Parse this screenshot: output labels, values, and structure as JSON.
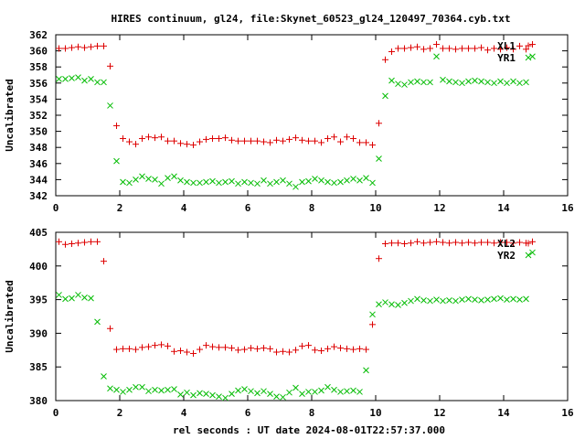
{
  "figure": {
    "title": "HIRES continuum, gl24, file:Skynet_60523_gl24_120497_70364.cyb.txt",
    "xlabel": "rel seconds : UT date 2024-08-01T22:57:37.000"
  },
  "chart_data": [
    {
      "type": "scatter",
      "ylabel": "Uncalibrated",
      "xlim": [
        0,
        16
      ],
      "ylim": [
        342,
        362
      ],
      "xticks": [
        0,
        2,
        4,
        6,
        8,
        10,
        12,
        14,
        16
      ],
      "yticks": [
        342,
        344,
        346,
        348,
        350,
        352,
        354,
        356,
        358,
        360,
        362
      ],
      "x": [
        0.1,
        0.3,
        0.5,
        0.7,
        0.9,
        1.1,
        1.3,
        1.5,
        1.7,
        1.9,
        2.1,
        2.3,
        2.5,
        2.7,
        2.9,
        3.1,
        3.3,
        3.5,
        3.7,
        3.9,
        4.1,
        4.3,
        4.5,
        4.7,
        4.9,
        5.1,
        5.3,
        5.5,
        5.7,
        5.9,
        6.1,
        6.3,
        6.5,
        6.7,
        6.9,
        7.1,
        7.3,
        7.5,
        7.7,
        7.9,
        8.1,
        8.3,
        8.5,
        8.7,
        8.9,
        9.1,
        9.3,
        9.5,
        9.7,
        9.9,
        10.1,
        10.3,
        10.5,
        10.7,
        10.9,
        11.1,
        11.3,
        11.5,
        11.7,
        11.9,
        12.1,
        12.3,
        12.5,
        12.7,
        12.9,
        13.1,
        13.3,
        13.5,
        13.7,
        13.9,
        14.1,
        14.3,
        14.5,
        14.7,
        14.9
      ],
      "series": [
        {
          "name": "XL1",
          "marker": "plus",
          "color": "#dd0000",
          "values": [
            360.3,
            360.3,
            360.4,
            360.5,
            360.4,
            360.5,
            360.6,
            360.6,
            358.1,
            350.7,
            349.1,
            348.7,
            348.4,
            349.1,
            349.3,
            349.2,
            349.3,
            348.8,
            348.8,
            348.5,
            348.4,
            348.3,
            348.7,
            349.0,
            349.1,
            349.1,
            349.2,
            348.9,
            348.8,
            348.8,
            348.8,
            348.8,
            348.7,
            348.6,
            348.9,
            348.8,
            349.0,
            349.2,
            348.9,
            348.8,
            348.8,
            348.6,
            349.1,
            349.3,
            348.7,
            349.3,
            349.1,
            348.6,
            348.6,
            348.3,
            351.0,
            358.9,
            359.9,
            360.3,
            360.3,
            360.4,
            360.5,
            360.2,
            360.3,
            360.8,
            360.3,
            360.3,
            360.2,
            360.3,
            360.3,
            360.3,
            360.4,
            360.1,
            360.3,
            360.2,
            360.4,
            360.2,
            360.6,
            360.2,
            360.8
          ]
        },
        {
          "name": "YR1",
          "marker": "cross",
          "color": "#00bb00",
          "values": [
            356.5,
            356.5,
            356.6,
            356.7,
            356.3,
            356.5,
            356.1,
            356.1,
            353.2,
            346.3,
            343.7,
            343.6,
            344.0,
            344.4,
            344.1,
            344.0,
            343.5,
            344.2,
            344.4,
            343.9,
            343.7,
            343.6,
            343.6,
            343.7,
            343.8,
            343.6,
            343.7,
            343.8,
            343.5,
            343.7,
            343.6,
            343.5,
            343.9,
            343.5,
            343.7,
            343.9,
            343.5,
            343.1,
            343.7,
            343.8,
            344.1,
            343.9,
            343.7,
            343.6,
            343.7,
            343.9,
            344.1,
            343.9,
            344.2,
            343.6,
            346.6,
            354.4,
            356.3,
            355.9,
            355.8,
            356.1,
            356.2,
            356.1,
            356.1,
            359.3,
            356.4,
            356.2,
            356.1,
            356.0,
            356.2,
            356.3,
            356.2,
            356.1,
            356.0,
            356.2,
            356.0,
            356.2,
            356.0,
            356.1,
            359.3
          ]
        }
      ]
    },
    {
      "type": "scatter",
      "ylabel": "Uncalibrated",
      "xlim": [
        0,
        16
      ],
      "ylim": [
        380,
        405
      ],
      "xticks": [
        0,
        2,
        4,
        6,
        8,
        10,
        12,
        14,
        16
      ],
      "yticks": [
        380,
        385,
        390,
        395,
        400,
        405
      ],
      "x": [
        0.1,
        0.3,
        0.5,
        0.7,
        0.9,
        1.1,
        1.3,
        1.5,
        1.7,
        1.9,
        2.1,
        2.3,
        2.5,
        2.7,
        2.9,
        3.1,
        3.3,
        3.5,
        3.7,
        3.9,
        4.1,
        4.3,
        4.5,
        4.7,
        4.9,
        5.1,
        5.3,
        5.5,
        5.7,
        5.9,
        6.1,
        6.3,
        6.5,
        6.7,
        6.9,
        7.1,
        7.3,
        7.5,
        7.7,
        7.9,
        8.1,
        8.3,
        8.5,
        8.7,
        8.9,
        9.1,
        9.3,
        9.5,
        9.7,
        9.9,
        10.1,
        10.3,
        10.5,
        10.7,
        10.9,
        11.1,
        11.3,
        11.5,
        11.7,
        11.9,
        12.1,
        12.3,
        12.5,
        12.7,
        12.9,
        13.1,
        13.3,
        13.5,
        13.7,
        13.9,
        14.1,
        14.3,
        14.5,
        14.7,
        14.9
      ],
      "series": [
        {
          "name": "XL2",
          "marker": "plus",
          "color": "#dd0000",
          "values": [
            403.6,
            403.2,
            403.3,
            403.4,
            403.5,
            403.6,
            403.6,
            400.7,
            390.7,
            387.6,
            387.7,
            387.7,
            387.6,
            387.9,
            388.0,
            388.2,
            388.3,
            388.1,
            387.3,
            387.4,
            387.2,
            387.0,
            387.6,
            388.2,
            388.0,
            387.9,
            387.9,
            387.8,
            387.5,
            387.6,
            387.8,
            387.7,
            387.8,
            387.7,
            387.2,
            387.3,
            387.2,
            387.5,
            388.1,
            388.2,
            387.5,
            387.4,
            387.7,
            388.0,
            387.8,
            387.7,
            387.6,
            387.7,
            387.6,
            391.3,
            401.1,
            403.3,
            403.4,
            403.4,
            403.3,
            403.4,
            403.6,
            403.4,
            403.5,
            403.6,
            403.5,
            403.4,
            403.5,
            403.4,
            403.5,
            403.4,
            403.5,
            403.5,
            403.4,
            403.5,
            403.5,
            403.4,
            403.5,
            403.4,
            403.6
          ]
        },
        {
          "name": "YR2",
          "marker": "cross",
          "color": "#00bb00",
          "values": [
            395.7,
            395.1,
            395.2,
            395.7,
            395.3,
            395.2,
            391.7,
            383.6,
            381.8,
            381.6,
            381.3,
            381.6,
            382.0,
            382.0,
            381.4,
            381.6,
            381.5,
            381.6,
            381.7,
            380.9,
            381.2,
            380.8,
            381.1,
            381.0,
            380.8,
            380.6,
            380.4,
            381.0,
            381.5,
            381.7,
            381.4,
            381.1,
            381.4,
            381.0,
            380.6,
            380.5,
            381.2,
            381.9,
            381.0,
            381.3,
            381.3,
            381.5,
            382.0,
            381.6,
            381.3,
            381.4,
            381.5,
            381.3,
            384.5,
            392.8,
            394.3,
            394.6,
            394.3,
            394.2,
            394.5,
            394.8,
            395.1,
            394.9,
            394.8,
            395.0,
            394.8,
            394.9,
            394.8,
            395.0,
            395.1,
            395.0,
            394.9,
            395.0,
            395.1,
            395.2,
            395.0,
            395.1,
            395.0,
            395.1,
            402.0
          ]
        }
      ]
    }
  ]
}
